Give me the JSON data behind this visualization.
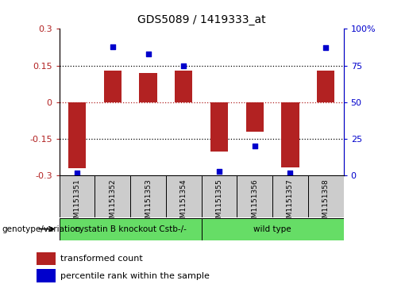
{
  "title": "GDS5089 / 1419333_at",
  "samples": [
    "GSM1151351",
    "GSM1151352",
    "GSM1151353",
    "GSM1151354",
    "GSM1151355",
    "GSM1151356",
    "GSM1151357",
    "GSM1151358"
  ],
  "bar_values": [
    -0.27,
    0.13,
    0.12,
    0.13,
    -0.2,
    -0.12,
    -0.265,
    0.13
  ],
  "percentile_values": [
    2,
    88,
    83,
    75,
    3,
    20,
    2,
    87
  ],
  "bar_color": "#b22222",
  "dot_color": "#0000cc",
  "ylim": [
    -0.3,
    0.3
  ],
  "yticks_left": [
    -0.3,
    -0.15,
    0,
    0.15,
    0.3
  ],
  "yticks_right": [
    0,
    25,
    50,
    75,
    100
  ],
  "hlines_black": [
    -0.15,
    0.15
  ],
  "hline_red": 0,
  "groups": [
    {
      "label": "cystatin B knockout Cstb-/-",
      "start": 0,
      "end": 4
    },
    {
      "label": "wild type",
      "start": 4,
      "end": 8
    }
  ],
  "legend_items": [
    "transformed count",
    "percentile rank within the sample"
  ],
  "legend_colors": [
    "#b22222",
    "#0000cc"
  ],
  "genotype_label": "genotype/variation",
  "bar_width": 0.5,
  "group_color": "#66dd66",
  "sample_box_color": "#cccccc",
  "title_fontsize": 10,
  "tick_fontsize": 8,
  "label_fontsize": 8
}
